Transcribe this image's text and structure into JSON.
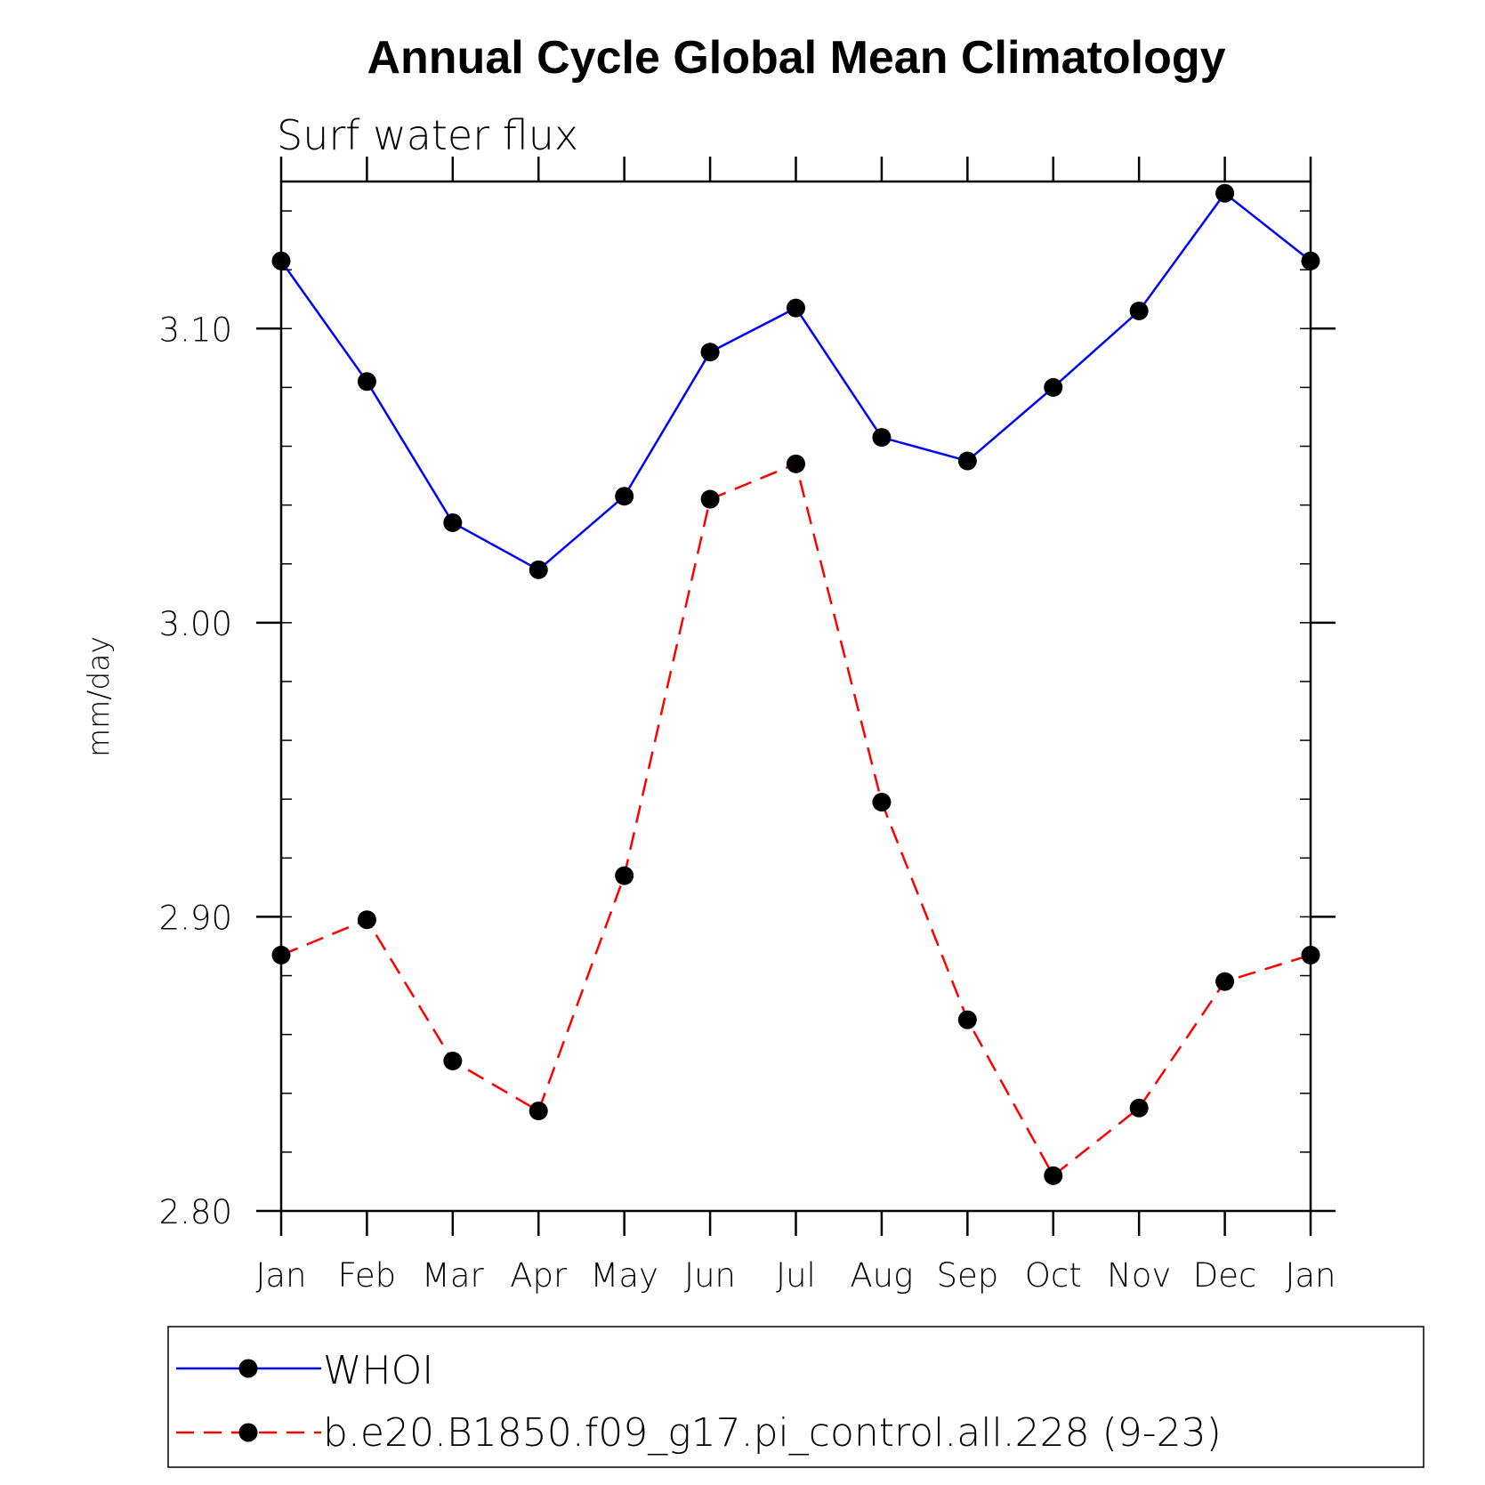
{
  "chart_data": {
    "type": "line",
    "title": "Annual Cycle Global Mean Climatology",
    "subtitle": "Surf water flux",
    "xlabel": "",
    "ylabel": "mm/day",
    "categories": [
      "Jan",
      "Feb",
      "Mar",
      "Apr",
      "May",
      "Jun",
      "Jul",
      "Aug",
      "Sep",
      "Oct",
      "Nov",
      "Dec",
      "Jan"
    ],
    "ylim": [
      2.8,
      3.15
    ],
    "yticks": [
      "2.80",
      "2.90",
      "3.00",
      "3.10"
    ],
    "ytick_values": [
      2.8,
      2.9,
      3.0,
      3.1
    ],
    "minor_tick_step": 0.02,
    "grid": false,
    "legend_position": "bottom",
    "series": [
      {
        "name": "WHOI",
        "color": "#0000ff",
        "dash": "solid",
        "marker": "filled-circle",
        "values": [
          3.123,
          3.082,
          3.034,
          3.018,
          3.043,
          3.092,
          3.107,
          3.063,
          3.055,
          3.08,
          3.106,
          3.146,
          3.123
        ]
      },
      {
        "name": "b.e20.B1850.f09_g17.pi_control.all.228 (9-23)",
        "color": "#ff0000",
        "dash": "dashed",
        "marker": "filled-circle",
        "values": [
          2.887,
          2.899,
          2.851,
          2.834,
          2.914,
          3.042,
          3.054,
          2.939,
          2.865,
          2.812,
          2.835,
          2.878,
          2.887
        ]
      }
    ]
  }
}
